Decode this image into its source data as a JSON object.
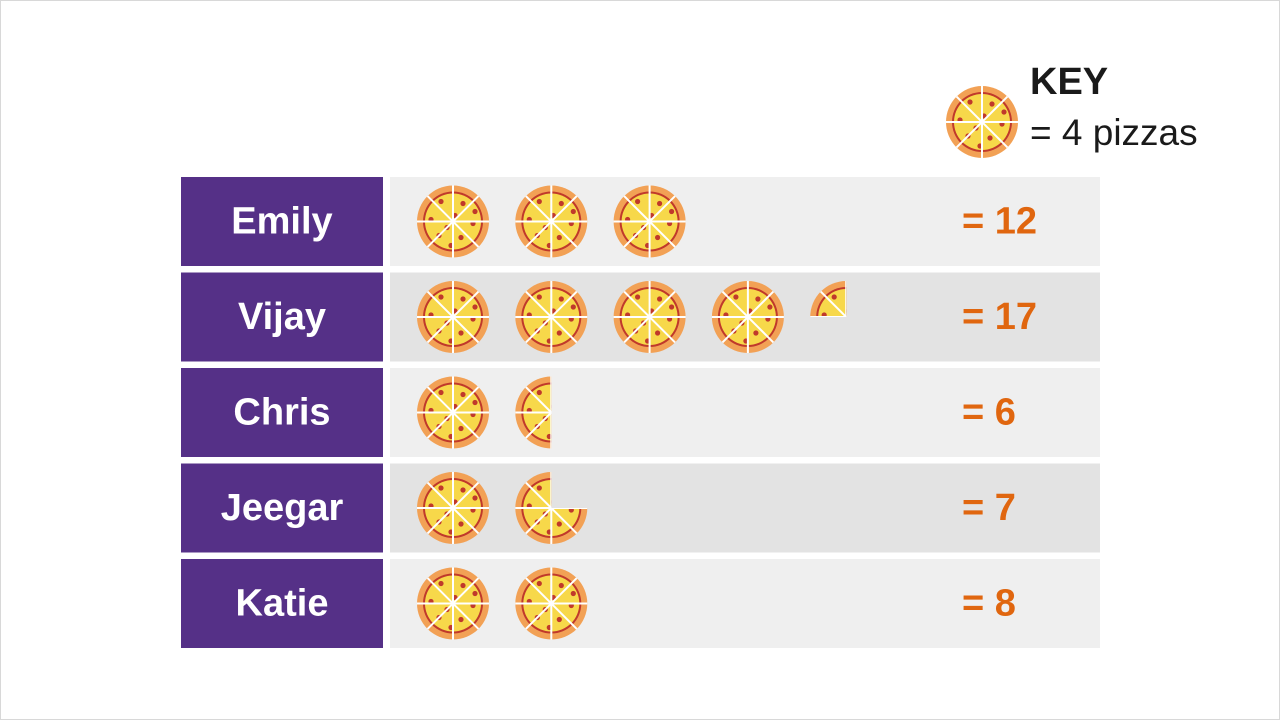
{
  "chart_data": {
    "type": "pictogram",
    "categories": [
      "Emily",
      "Vijay",
      "Chris",
      "Jeegar",
      "Katie"
    ],
    "values": [
      12,
      17,
      6,
      7,
      8
    ],
    "value_labels": [
      "= 12",
      "= 17",
      "= 6",
      "= 7",
      "= 8"
    ],
    "key": {
      "title": "KEY",
      "label": "= 4 pizzas",
      "value": 4
    },
    "color": "#e0660f"
  }
}
